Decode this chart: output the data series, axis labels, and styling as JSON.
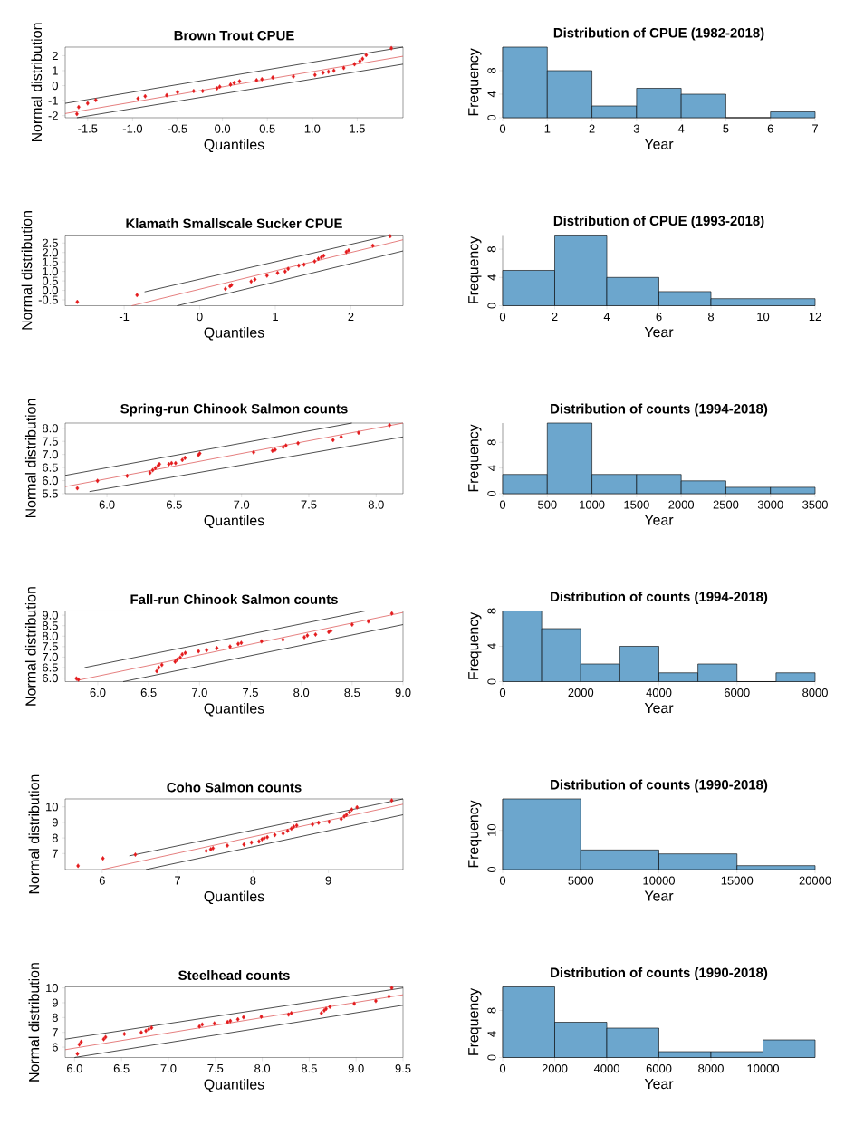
{
  "chart_data": [
    {
      "type": "scatter",
      "title": "Brown Trout CPUE",
      "xlabel": "Quantiles",
      "ylabel": "Normal distribution",
      "xlim": [
        -1.75,
        2.01
      ],
      "ylim": [
        -2.14,
        2.57
      ],
      "xticks": [
        -1.5,
        {
          "value": -1,
          "label": "-1.0"
        },
        -0.5,
        {
          "value": 0,
          "label": "0.0"
        },
        0.5,
        {
          "value": 1,
          "label": "1.0"
        },
        1.5
      ],
      "yticks": [
        -2,
        -1,
        0,
        1,
        2
      ],
      "series": [
        {
          "type": "scatter",
          "marker": "diamond",
          "color": "#e41a1c",
          "x": [
            -1.62,
            -1.6,
            -1.5,
            -1.41,
            -0.94,
            -0.86,
            -0.62,
            -0.5,
            -0.32,
            -0.22,
            -0.06,
            -0.03,
            0.09,
            0.13,
            0.19,
            0.38,
            0.44,
            0.56,
            0.79,
            1.03,
            1.12,
            1.18,
            1.24,
            1.35,
            1.47,
            1.53,
            1.56,
            1.6,
            1.88
          ],
          "values": [
            -1.89,
            -1.43,
            -1.18,
            -0.96,
            -0.86,
            -0.71,
            -0.64,
            -0.43,
            -0.36,
            -0.36,
            -0.18,
            -0.07,
            0.07,
            0.18,
            0.29,
            0.36,
            0.43,
            0.54,
            0.61,
            0.71,
            0.86,
            0.93,
            1.0,
            1.18,
            1.43,
            1.64,
            1.79,
            2.04,
            2.5
          ]
        },
        {
          "type": "line",
          "color": "#d94848",
          "x": [
            -1.75,
            2.01
          ],
          "values": [
            -1.86,
            1.96
          ]
        },
        {
          "type": "line",
          "color": "#000000",
          "x": [
            -1.75,
            2.01
          ],
          "values": [
            -1.18,
            2.57
          ]
        },
        {
          "type": "line",
          "color": "#000000",
          "x": [
            -1.62,
            2.01
          ],
          "values": [
            -2.14,
            1.43
          ]
        }
      ]
    },
    {
      "type": "histogram",
      "title": "Distribution of CPUE (1982-2018)",
      "xlabel": "Year",
      "ylabel": "Frequency",
      "color": "#6ca6cd",
      "bins": [
        0,
        1,
        2,
        3,
        4,
        5,
        6,
        7
      ],
      "values": [
        12,
        8,
        2,
        5,
        4,
        0,
        1
      ],
      "xlim": [
        0,
        7
      ],
      "ylim": [
        0,
        12
      ],
      "xticks": [
        0,
        1,
        2,
        3,
        4,
        5,
        6,
        7
      ],
      "yticks": [
        0,
        4,
        8
      ]
    },
    {
      "type": "scatter",
      "title": "Klamath Smallscale Sucker CPUE",
      "xlabel": "Quantiles",
      "ylabel": "Normal distribution",
      "xlim": [
        -1.78,
        2.69
      ],
      "ylim": [
        -0.81,
        2.92
      ],
      "xticks": [
        -1,
        0,
        1,
        2
      ],
      "yticks": [
        -0.5,
        {
          "value": 0,
          "label": "0.0"
        },
        0.5,
        {
          "value": 1,
          "label": "1.0"
        },
        1.5,
        {
          "value": 2,
          "label": "2.0"
        },
        2.5
      ],
      "series": [
        {
          "type": "scatter",
          "marker": "diamond",
          "color": "#e41a1c",
          "x": [
            -1.62,
            -0.83,
            0.34,
            0.4,
            0.42,
            0.68,
            0.73,
            0.89,
            1.03,
            1.13,
            1.17,
            1.31,
            1.38,
            1.52,
            1.57,
            1.61,
            1.64,
            1.94,
            1.97,
            2.29,
            2.52
          ],
          "values": [
            -0.61,
            -0.25,
            0.08,
            0.22,
            0.28,
            0.47,
            0.58,
            0.78,
            0.92,
            1.0,
            1.14,
            1.31,
            1.36,
            1.53,
            1.67,
            1.75,
            1.83,
            2.03,
            2.11,
            2.36,
            2.86
          ]
        },
        {
          "type": "line",
          "color": "#d94848",
          "x": [
            -0.9,
            2.69
          ],
          "values": [
            -0.81,
            2.67
          ]
        },
        {
          "type": "line",
          "color": "#000000",
          "x": [
            -0.73,
            2.53
          ],
          "values": [
            -0.08,
            2.92
          ]
        },
        {
          "type": "line",
          "color": "#000000",
          "x": [
            -0.3,
            2.69
          ],
          "values": [
            -0.81,
            2.08
          ]
        }
      ]
    },
    {
      "type": "histogram",
      "title": "Distribution of CPUE (1993-2018)",
      "xlabel": "Year",
      "ylabel": "Frequency",
      "color": "#6ca6cd",
      "bins": [
        0,
        2,
        4,
        6,
        8,
        10,
        12
      ],
      "values": [
        5,
        10,
        4,
        2,
        1,
        1
      ],
      "xlim": [
        0,
        12
      ],
      "ylim": [
        0,
        10
      ],
      "xticks": [
        0,
        2,
        4,
        6,
        8,
        10,
        12
      ],
      "yticks": [
        0,
        4,
        8
      ]
    },
    {
      "type": "scatter",
      "title": "Spring-run Chinook Salmon counts",
      "xlabel": "Quantiles",
      "ylabel": "Normal distribution",
      "xlim": [
        5.69,
        8.2
      ],
      "ylim": [
        5.5,
        8.2
      ],
      "xticks": [
        {
          "value": 6,
          "label": "6.0"
        },
        6.5,
        {
          "value": 7,
          "label": "7.0"
        },
        7.5,
        {
          "value": 8,
          "label": "8.0"
        }
      ],
      "yticks": [
        5.5,
        {
          "value": 6,
          "label": "6.0"
        },
        6.5,
        {
          "value": 7,
          "label": "7.0"
        },
        7.5,
        {
          "value": 8,
          "label": "8.0"
        }
      ],
      "series": [
        {
          "type": "scatter",
          "marker": "diamond",
          "color": "#e41a1c",
          "x": [
            5.78,
            5.93,
            6.15,
            6.32,
            6.34,
            6.36,
            6.38,
            6.39,
            6.46,
            6.48,
            6.51,
            6.56,
            6.58,
            6.68,
            6.69,
            7.09,
            7.23,
            7.25,
            7.31,
            7.33,
            7.42,
            7.68,
            7.74,
            7.87,
            8.1
          ],
          "values": [
            5.71,
            5.99,
            6.18,
            6.3,
            6.4,
            6.48,
            6.57,
            6.63,
            6.63,
            6.67,
            6.67,
            6.79,
            6.87,
            6.98,
            7.04,
            7.08,
            7.14,
            7.18,
            7.28,
            7.34,
            7.43,
            7.55,
            7.67,
            7.83,
            8.12
          ]
        },
        {
          "type": "line",
          "color": "#d94848",
          "x": [
            5.69,
            8.2
          ],
          "values": [
            5.77,
            8.2
          ]
        },
        {
          "type": "line",
          "color": "#000000",
          "x": [
            5.69,
            7.82
          ],
          "values": [
            6.2,
            8.2
          ]
        },
        {
          "type": "line",
          "color": "#000000",
          "x": [
            5.87,
            8.2
          ],
          "values": [
            5.58,
            7.67
          ]
        }
      ]
    },
    {
      "type": "histogram",
      "title": "Distribution of counts (1994-2018)",
      "xlabel": "Year",
      "ylabel": "Frequency",
      "color": "#6ca6cd",
      "bins": [
        0,
        500,
        1000,
        1500,
        2000,
        2500,
        3000,
        3500
      ],
      "values": [
        3,
        11,
        3,
        3,
        2,
        1,
        1
      ],
      "xlim": [
        0,
        3500
      ],
      "ylim": [
        0,
        11
      ],
      "xticks": [
        0,
        500,
        1000,
        1500,
        2000,
        2500,
        3000,
        3500
      ],
      "yticks": [
        0,
        4,
        8
      ]
    },
    {
      "type": "scatter",
      "title": "Fall-run Chinook Salmon counts",
      "xlabel": "Quantiles",
      "ylabel": "Normal distribution",
      "xlim": [
        5.68,
        9.0
      ],
      "ylim": [
        5.83,
        9.2
      ],
      "xticks": [
        {
          "value": 6,
          "label": "6.0"
        },
        6.5,
        {
          "value": 7,
          "label": "7.0"
        },
        7.5,
        {
          "value": 8,
          "label": "8.0"
        },
        8.5,
        {
          "value": 9,
          "label": "9.0"
        }
      ],
      "yticks": [
        {
          "value": 6,
          "label": "6.0"
        },
        6.5,
        {
          "value": 7,
          "label": "7.0"
        },
        7.5,
        {
          "value": 8,
          "label": "8.0"
        },
        8.5,
        {
          "value": 9,
          "label": "9.0"
        }
      ],
      "series": [
        {
          "type": "scatter",
          "marker": "diamond",
          "color": "#e41a1c",
          "x": [
            5.79,
            5.81,
            6.58,
            6.6,
            6.63,
            6.76,
            6.78,
            6.81,
            6.83,
            6.86,
            6.99,
            7.07,
            7.17,
            7.3,
            7.38,
            7.41,
            7.61,
            7.82,
            8.03,
            8.06,
            8.14,
            8.27,
            8.29,
            8.5,
            8.66,
            8.89
          ],
          "values": [
            5.98,
            5.93,
            6.33,
            6.5,
            6.63,
            6.78,
            6.88,
            6.98,
            7.13,
            7.2,
            7.28,
            7.33,
            7.43,
            7.5,
            7.63,
            7.68,
            7.75,
            7.83,
            7.95,
            8.03,
            8.08,
            8.2,
            8.25,
            8.55,
            8.7,
            9.08
          ]
        },
        {
          "type": "line",
          "color": "#d94848",
          "x": [
            5.79,
            9.0
          ],
          "values": [
            5.88,
            9.13
          ]
        },
        {
          "type": "line",
          "color": "#000000",
          "x": [
            5.87,
            8.63
          ],
          "values": [
            6.5,
            9.2
          ]
        },
        {
          "type": "line",
          "color": "#000000",
          "x": [
            6.25,
            9.0
          ],
          "values": [
            5.83,
            8.55
          ]
        }
      ]
    },
    {
      "type": "histogram",
      "title": "Distribution of counts (1994-2018)",
      "xlabel": "Year",
      "ylabel": "Frequency",
      "color": "#6ca6cd",
      "bins": [
        0,
        1000,
        2000,
        3000,
        4000,
        5000,
        6000,
        7000,
        8000
      ],
      "values": [
        8,
        6,
        2,
        4,
        1,
        2,
        0,
        1
      ],
      "xlim": [
        0,
        8000
      ],
      "ylim": [
        0,
        8
      ],
      "xticks": [
        0,
        2000,
        4000,
        6000,
        8000
      ],
      "yticks": [
        0,
        4,
        8
      ]
    },
    {
      "type": "scatter",
      "title": "Coho Salmon counts",
      "xlabel": "Quantiles",
      "ylabel": "Normal distribution",
      "xlim": [
        5.51,
        9.99
      ],
      "ylim": [
        5.97,
        10.51
      ],
      "xticks": [
        6,
        7,
        8,
        9
      ],
      "yticks": [
        7,
        8,
        9,
        10
      ],
      "series": [
        {
          "type": "scatter",
          "marker": "diamond",
          "color": "#e41a1c",
          "x": [
            5.68,
            6.01,
            6.44,
            7.38,
            7.44,
            7.47,
            7.66,
            7.88,
            7.98,
            8.08,
            8.12,
            8.15,
            8.19,
            8.29,
            8.4,
            8.46,
            8.51,
            8.54,
            8.58,
            8.79,
            8.87,
            9.01,
            9.17,
            9.21,
            9.24,
            9.28,
            9.31,
            9.38,
            9.84
          ],
          "values": [
            6.21,
            6.69,
            6.93,
            7.17,
            7.27,
            7.34,
            7.51,
            7.58,
            7.71,
            7.78,
            7.92,
            7.99,
            8.05,
            8.19,
            8.29,
            8.46,
            8.6,
            8.73,
            8.81,
            8.87,
            8.98,
            9.04,
            9.22,
            9.39,
            9.49,
            9.66,
            9.83,
            9.97,
            10.41
          ]
        },
        {
          "type": "line",
          "color": "#d94848",
          "x": [
            6.0,
            9.99
          ],
          "values": [
            5.97,
            10.17
          ]
        },
        {
          "type": "line",
          "color": "#000000",
          "x": [
            6.36,
            9.99
          ],
          "values": [
            6.85,
            10.51
          ]
        },
        {
          "type": "line",
          "color": "#000000",
          "x": [
            6.58,
            9.99
          ],
          "values": [
            5.97,
            9.49
          ]
        }
      ]
    },
    {
      "type": "histogram",
      "title": "Distribution of counts (1990-2018)",
      "xlabel": "Year",
      "ylabel": "Frequency",
      "color": "#6ca6cd",
      "bins": [
        0,
        5000,
        10000,
        15000,
        20000
      ],
      "values": [
        18,
        5,
        4,
        1
      ],
      "xlim": [
        0,
        20000
      ],
      "ylim": [
        0,
        18
      ],
      "xticks": [
        0,
        5000,
        10000,
        15000,
        20000
      ],
      "yticks": [
        0,
        10
      ]
    },
    {
      "type": "scatter",
      "title": "Steelhead counts",
      "xlabel": "Quantiles",
      "ylabel": "Normal distribution",
      "xlim": [
        5.9,
        9.5
      ],
      "ylim": [
        5.3,
        10.07
      ],
      "xticks": [
        {
          "value": 6,
          "label": "6.0"
        },
        6.5,
        {
          "value": 7,
          "label": "7.0"
        },
        7.5,
        {
          "value": 8,
          "label": "8.0"
        },
        8.5,
        {
          "value": 9,
          "label": "9.0"
        },
        9.5
      ],
      "yticks": [
        6,
        7,
        8,
        9,
        10
      ],
      "series": [
        {
          "type": "scatter",
          "marker": "diamond",
          "color": "#e41a1c",
          "x": [
            6.03,
            6.05,
            6.07,
            6.31,
            6.33,
            6.53,
            6.71,
            6.76,
            6.79,
            6.82,
            7.33,
            7.36,
            7.49,
            7.63,
            7.66,
            7.74,
            7.8,
            7.99,
            8.28,
            8.31,
            8.63,
            8.66,
            8.68,
            8.72,
            8.98,
            9.21,
            9.35,
            9.38
          ],
          "values": [
            5.55,
            6.18,
            6.36,
            6.54,
            6.68,
            6.89,
            6.99,
            7.1,
            7.21,
            7.31,
            7.39,
            7.53,
            7.6,
            7.7,
            7.77,
            7.88,
            8.02,
            8.06,
            8.2,
            8.3,
            8.3,
            8.48,
            8.59,
            8.73,
            8.94,
            9.12,
            9.43,
            10.0
          ]
        },
        {
          "type": "line",
          "color": "#d94848",
          "x": [
            5.9,
            9.5
          ],
          "values": [
            5.83,
            9.54
          ]
        },
        {
          "type": "line",
          "color": "#000000",
          "x": [
            5.9,
            9.5
          ],
          "values": [
            6.54,
            10.0
          ]
        },
        {
          "type": "line",
          "color": "#000000",
          "x": [
            6.0,
            9.5
          ],
          "values": [
            5.3,
            8.83
          ]
        }
      ]
    },
    {
      "type": "histogram",
      "title": "Distribution of counts (1990-2018)",
      "xlabel": "Year",
      "ylabel": "Frequency",
      "color": "#6ca6cd",
      "bins": [
        0,
        2000,
        4000,
        6000,
        8000,
        10000,
        12000
      ],
      "values": [
        12,
        6,
        5,
        1,
        1,
        3
      ],
      "xlim": [
        0,
        12000
      ],
      "ylim": [
        0,
        12
      ],
      "xticks": [
        0,
        2000,
        4000,
        6000,
        8000,
        10000
      ],
      "yticks": [
        0,
        4,
        8
      ]
    }
  ]
}
